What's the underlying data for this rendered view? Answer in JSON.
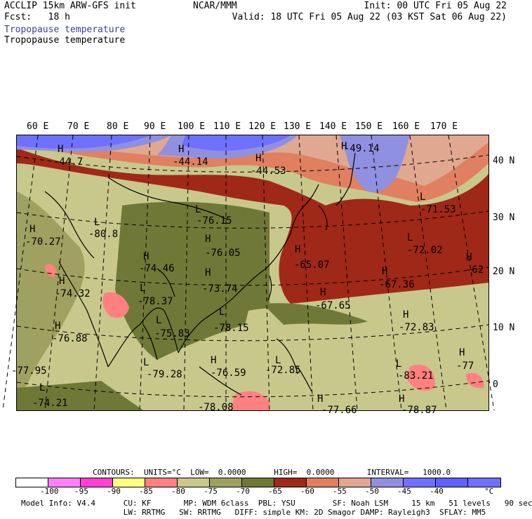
{
  "header": {
    "left_line1": "ACCLIP 15km ARW-GFS init",
    "left_line2": "Fcst:   18 h",
    "center_line1": "NCAR/MMM",
    "right_line1": "Init: 00 UTC Fri 05 Aug 22",
    "right_line2": "Valid: 18 UTC Fri 05 Aug 22 (03 KST Sat 06 Aug 22)",
    "title_blue": "Tropopause temperature",
    "title_black": "Tropopause temperature"
  },
  "map": {
    "lon_labels": [
      "60 E",
      "70 E",
      "80 E",
      "90 E",
      "100 E",
      "110 E",
      "120 E",
      "130 E",
      "140 E",
      "150 E",
      "160 E",
      "170 E"
    ],
    "lat_labels": [
      "40 N",
      "30 N",
      "20 N",
      "10 N",
      "0"
    ],
    "centers": [
      {
        "mark": "H",
        "value": "-44.7"
      },
      {
        "mark": "H",
        "value": "-44.14"
      },
      {
        "mark": "H",
        "value": "-44.53"
      },
      {
        "mark": "H",
        "value": "-49.14"
      },
      {
        "mark": "H",
        "value": "-70.27"
      },
      {
        "mark": "L",
        "value": "-80.8"
      },
      {
        "mark": "L",
        "value": "-76.15"
      },
      {
        "mark": "L",
        "value": "-71.53"
      },
      {
        "mark": "H",
        "value": "-76.05"
      },
      {
        "mark": "H",
        "value": "-74.46"
      },
      {
        "mark": "H",
        "value": "-65.07"
      },
      {
        "mark": "L",
        "value": "-72.02"
      },
      {
        "mark": "H",
        "value": "-62"
      },
      {
        "mark": "H",
        "value": "-74.32"
      },
      {
        "mark": "H",
        "value": "-73.74"
      },
      {
        "mark": "H",
        "value": "-67.36"
      },
      {
        "mark": "L",
        "value": "-78.37"
      },
      {
        "mark": "H",
        "value": "-67.65"
      },
      {
        "mark": "L",
        "value": "-78.15"
      },
      {
        "mark": "H",
        "value": "-72.83"
      },
      {
        "mark": "H",
        "value": "-76.88"
      },
      {
        "mark": "L",
        "value": "-75.83"
      },
      {
        "mark": "H",
        "value": "-77"
      },
      {
        "mark": "L",
        "value": "-79.28"
      },
      {
        "mark": "H",
        "value": "-76.59"
      },
      {
        "mark": "L",
        "value": "-72.85"
      },
      {
        "mark": "L",
        "value": "-83.21"
      },
      {
        "mark": "",
        "value": "-77.95"
      },
      {
        "mark": "L",
        "value": "-74.21"
      },
      {
        "mark": "",
        "value": "-78.08"
      },
      {
        "mark": "H",
        "value": "-77.66"
      },
      {
        "mark": "H",
        "value": "-78.87"
      }
    ]
  },
  "contours": {
    "line": "CONTOURS:  UNITS=°C  LOW=  0.0000      HIGH=  0.0000       INTERVAL=   1000.0"
  },
  "legend": {
    "colors": [
      "#ffffff",
      "#ff80ff",
      "#ff40d0",
      "#ffff80",
      "#ff8080",
      "#c8c88c",
      "#a0a060",
      "#707838",
      "#a02818",
      "#e08060",
      "#e0a890",
      "#9090e0",
      "#7070ff",
      "#6060ff",
      "#7070ff"
    ],
    "ticks": [
      "-100",
      "-95",
      "-90",
      "-85",
      "-80",
      "-75",
      "-70",
      "-65",
      "-60",
      "-55",
      "-50",
      "-45",
      "-40",
      "°C"
    ]
  },
  "footer": {
    "line1": "Model Info: V4.4      CU: KF       MP: WDM 6class  PBL: YSU        SF: Noah LSM     15 km   51 levels   90 sec",
    "line2": "                      LW: RRTMG   SW: RRTMG   DIFF: simple KM: 2D Smagor DAMP: Rayleigh3  SFLAY: MM5"
  }
}
